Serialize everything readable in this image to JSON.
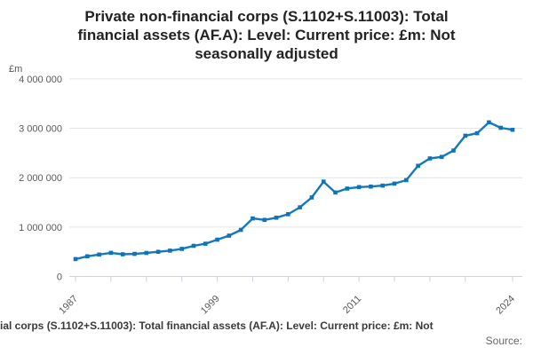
{
  "title": {
    "full": "Private non-financial corps (S.1102+S.11003): Total financial assets (AF.A): Level: Current price: £m: Not seasonally adjusted",
    "lines": [
      "Private non-financial corps (S.1102+S.11003): Total",
      "financial assets (AF.A): Level: Current price: £m: Not",
      "seasonally adjusted"
    ]
  },
  "footer": {
    "legend_text": "ial corps (S.1102+S.11003): Total financial assets (AF.A): Level: Current price: £m: Not",
    "source_label": "Source:"
  },
  "colors": {
    "line": "#1379bf",
    "marker": "#1173b5",
    "grid": "#e4e4e4",
    "axis": "#c9d3e3",
    "tick_label": "#595959",
    "title_text": "#222222",
    "footer_text": "#3a3a3a",
    "source_text": "#666666"
  },
  "chart_data": {
    "type": "line",
    "title": "Private non-financial corps (S.1102+S.11003): Total financial assets (AF.A): Level: Current price: £m: Not seasonally adjusted",
    "xlabel": "",
    "ylabel": "£m",
    "unit_label": "£m",
    "ylim": [
      0,
      4000000
    ],
    "grid": "horizontal",
    "legend": "none",
    "marker": "square",
    "x": [
      1987,
      1988,
      1989,
      1990,
      1991,
      1992,
      1993,
      1994,
      1995,
      1996,
      1997,
      1998,
      1999,
      2000,
      2001,
      2002,
      2003,
      2004,
      2005,
      2006,
      2007,
      2008,
      2009,
      2010,
      2011,
      2012,
      2013,
      2014,
      2015,
      2016,
      2017,
      2018,
      2019,
      2020,
      2021,
      2022,
      2023,
      2024
    ],
    "values": [
      352000,
      408000,
      443000,
      478000,
      449000,
      457000,
      476000,
      499000,
      523000,
      558000,
      620000,
      663000,
      745000,
      826000,
      943000,
      1175000,
      1145000,
      1190000,
      1260000,
      1400000,
      1600000,
      1920000,
      1700000,
      1780000,
      1810000,
      1820000,
      1840000,
      1880000,
      1950000,
      2240000,
      2390000,
      2420000,
      2550000,
      2850000,
      2900000,
      3120000,
      3010000,
      2970000
    ],
    "y_ticks": {
      "values": [
        0,
        1000000,
        2000000,
        3000000,
        4000000
      ],
      "labels": [
        "0",
        "1 000 000",
        "2 000 000",
        "3 000 000",
        "4 000 000"
      ]
    },
    "x_ticks": {
      "years": [
        1987,
        1990,
        1993,
        1996,
        1999,
        2002,
        2005,
        2008,
        2011,
        2014,
        2017,
        2020,
        2024
      ],
      "labeled_years": [
        1987,
        1999,
        2011,
        2024
      ]
    }
  }
}
